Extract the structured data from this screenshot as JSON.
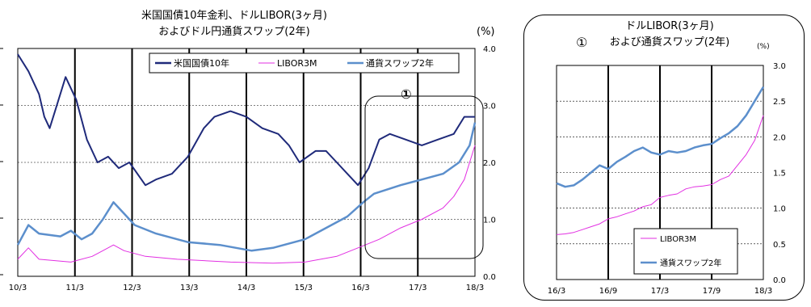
{
  "charts": [
    {
      "title_line1": "米国国債10年金利、ドルLIBOR(3ヶ月)",
      "title_line2": "およびドル円通貨スワップ(2年)",
      "unit": "(%)"
    },
    {
      "title_line1": "ドルLIBOR(3ヶ月)",
      "title_line2": "および通貨スワップ(2年)",
      "unit": "(%)",
      "marker": "①"
    }
  ],
  "colors": {
    "treasury": "#1f2a7a",
    "libor": "#e22fe2",
    "swap": "#5c8fcc"
  },
  "chart_data": [
    {
      "type": "line",
      "x_ticks": [
        "10/3",
        "11/3",
        "12/3",
        "13/3",
        "14/3",
        "15/3",
        "16/3",
        "17/3",
        "18/3"
      ],
      "y_ticks": [
        "0.0",
        "1.0",
        "2.0",
        "3.0",
        "4.0"
      ],
      "ylim": [
        0,
        4
      ],
      "grid": true,
      "legend_position": "top",
      "annotation": "①",
      "series": [
        {
          "name": "米国国債10年",
          "color_key": "treasury",
          "points": [
            [
              0,
              3.9
            ],
            [
              2,
              3.6
            ],
            [
              4,
              3.2
            ],
            [
              5,
              2.8
            ],
            [
              6,
              2.6
            ],
            [
              7,
              2.9
            ],
            [
              9,
              3.5
            ],
            [
              11,
              3.1
            ],
            [
              13,
              2.4
            ],
            [
              15,
              2.0
            ],
            [
              17,
              2.1
            ],
            [
              19,
              1.9
            ],
            [
              21,
              2.0
            ],
            [
              24,
              1.6
            ],
            [
              26,
              1.7
            ],
            [
              29,
              1.8
            ],
            [
              32,
              2.1
            ],
            [
              35,
              2.6
            ],
            [
              37,
              2.8
            ],
            [
              40,
              2.9
            ],
            [
              43,
              2.8
            ],
            [
              46,
              2.6
            ],
            [
              49,
              2.5
            ],
            [
              51,
              2.3
            ],
            [
              53,
              2.0
            ],
            [
              56,
              2.2
            ],
            [
              58,
              2.2
            ],
            [
              60,
              2.0
            ],
            [
              62,
              1.8
            ],
            [
              64,
              1.6
            ],
            [
              66,
              1.9
            ],
            [
              68,
              2.4
            ],
            [
              70,
              2.5
            ],
            [
              73,
              2.4
            ],
            [
              76,
              2.3
            ],
            [
              79,
              2.4
            ],
            [
              82,
              2.5
            ],
            [
              84,
              2.8
            ],
            [
              85,
              2.8
            ],
            [
              86,
              2.8
            ]
          ]
        },
        {
          "name": "LIBOR3M",
          "color_key": "libor",
          "points": [
            [
              0,
              0.3
            ],
            [
              2,
              0.5
            ],
            [
              4,
              0.3
            ],
            [
              10,
              0.25
            ],
            [
              14,
              0.35
            ],
            [
              16,
              0.45
            ],
            [
              18,
              0.55
            ],
            [
              20,
              0.45
            ],
            [
              24,
              0.35
            ],
            [
              30,
              0.3
            ],
            [
              40,
              0.25
            ],
            [
              48,
              0.23
            ],
            [
              54,
              0.25
            ],
            [
              60,
              0.35
            ],
            [
              64,
              0.5
            ],
            [
              68,
              0.65
            ],
            [
              72,
              0.85
            ],
            [
              76,
              1.0
            ],
            [
              80,
              1.2
            ],
            [
              82,
              1.4
            ],
            [
              84,
              1.7
            ],
            [
              86,
              2.3
            ]
          ]
        },
        {
          "name": "通貨スワップ2年",
          "color_key": "swap",
          "points": [
            [
              0,
              0.55
            ],
            [
              2,
              0.9
            ],
            [
              4,
              0.75
            ],
            [
              8,
              0.7
            ],
            [
              10,
              0.8
            ],
            [
              12,
              0.65
            ],
            [
              14,
              0.75
            ],
            [
              16,
              1.0
            ],
            [
              18,
              1.3
            ],
            [
              20,
              1.1
            ],
            [
              22,
              0.9
            ],
            [
              26,
              0.75
            ],
            [
              32,
              0.6
            ],
            [
              38,
              0.55
            ],
            [
              44,
              0.45
            ],
            [
              48,
              0.5
            ],
            [
              54,
              0.65
            ],
            [
              58,
              0.85
            ],
            [
              62,
              1.05
            ],
            [
              65,
              1.3
            ],
            [
              67,
              1.45
            ],
            [
              72,
              1.6
            ],
            [
              76,
              1.7
            ],
            [
              80,
              1.8
            ],
            [
              83,
              2.0
            ],
            [
              85,
              2.3
            ],
            [
              86,
              2.7
            ]
          ]
        }
      ]
    },
    {
      "type": "line",
      "x_ticks": [
        "16/3",
        "16/9",
        "17/3",
        "17/9",
        "18/3"
      ],
      "y_ticks": [
        "0.0",
        "0.5",
        "1.0",
        "1.5",
        "2.0",
        "2.5",
        "3.0"
      ],
      "ylim": [
        0,
        3
      ],
      "grid": true,
      "legend_position": "bottom-right",
      "series": [
        {
          "name": "LIBOR3M",
          "color_key": "libor",
          "points": [
            [
              0,
              0.63
            ],
            [
              1,
              0.64
            ],
            [
              2,
              0.66
            ],
            [
              3,
              0.7
            ],
            [
              4,
              0.74
            ],
            [
              5,
              0.78
            ],
            [
              6,
              0.85
            ],
            [
              7,
              0.88
            ],
            [
              8,
              0.92
            ],
            [
              9,
              0.96
            ],
            [
              10,
              1.02
            ],
            [
              11,
              1.05
            ],
            [
              12,
              1.15
            ],
            [
              13,
              1.18
            ],
            [
              14,
              1.2
            ],
            [
              15,
              1.27
            ],
            [
              16,
              1.3
            ],
            [
              17,
              1.31
            ],
            [
              18,
              1.33
            ],
            [
              19,
              1.4
            ],
            [
              20,
              1.45
            ],
            [
              21,
              1.6
            ],
            [
              22,
              1.75
            ],
            [
              23,
              1.95
            ],
            [
              24,
              2.3
            ]
          ]
        },
        {
          "name": "通貨スワップ2年",
          "color_key": "swap",
          "points": [
            [
              0,
              1.35
            ],
            [
              1,
              1.3
            ],
            [
              2,
              1.32
            ],
            [
              3,
              1.4
            ],
            [
              4,
              1.5
            ],
            [
              5,
              1.6
            ],
            [
              6,
              1.55
            ],
            [
              7,
              1.65
            ],
            [
              8,
              1.72
            ],
            [
              9,
              1.8
            ],
            [
              10,
              1.85
            ],
            [
              11,
              1.78
            ],
            [
              12,
              1.75
            ],
            [
              13,
              1.8
            ],
            [
              14,
              1.78
            ],
            [
              15,
              1.8
            ],
            [
              16,
              1.85
            ],
            [
              17,
              1.88
            ],
            [
              18,
              1.9
            ],
            [
              19,
              1.98
            ],
            [
              20,
              2.05
            ],
            [
              21,
              2.15
            ],
            [
              22,
              2.3
            ],
            [
              23,
              2.5
            ],
            [
              24,
              2.7
            ]
          ]
        }
      ]
    }
  ]
}
